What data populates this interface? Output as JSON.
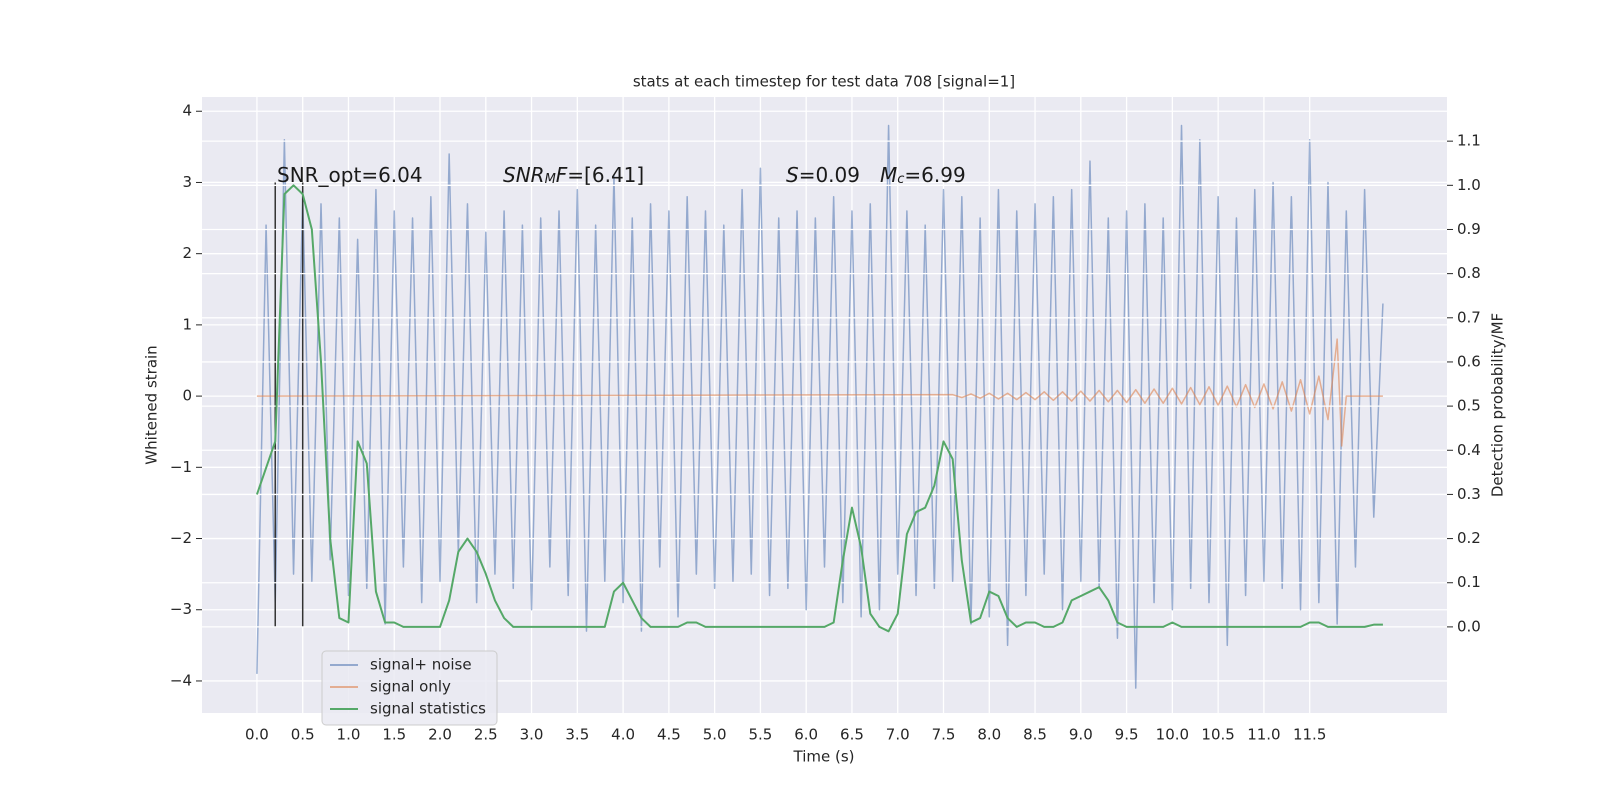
{
  "chart_data": {
    "type": "line",
    "title": "stats at each timestep for test data 708 [signal=1]",
    "x_label": "Time (s)",
    "y_label": "Whitened strain",
    "y2_label": "Detection probability/MF",
    "xlim": [
      -0.6,
      13.0
    ],
    "ylim": [
      -4.45,
      4.2
    ],
    "y2lim": [
      -0.195,
      1.2
    ],
    "grid": true,
    "xticks": [
      {
        "value": 0,
        "label": "0.0"
      },
      0.5,
      {
        "value": 1,
        "label": "1.0"
      },
      1.5,
      {
        "value": 2,
        "label": "2.0"
      },
      2.5,
      {
        "value": 3,
        "label": "3.0"
      },
      3.5,
      {
        "value": 4,
        "label": "4.0"
      },
      4.5,
      {
        "value": 5,
        "label": "5.0"
      },
      5.5,
      {
        "value": 6,
        "label": "6.0"
      },
      6.5,
      {
        "value": 7,
        "label": "7.0"
      },
      7.5,
      {
        "value": 8,
        "label": "8.0"
      },
      8.5,
      {
        "value": 9,
        "label": "9.0"
      },
      9.5,
      {
        "value": 10,
        "label": "10.0"
      },
      10.5,
      {
        "value": 11,
        "label": "11.0"
      },
      11.5
    ],
    "yticks": [
      {
        "value": -4,
        "label": "−4"
      },
      {
        "value": -3,
        "label": "−3"
      },
      {
        "value": -2,
        "label": "−2"
      },
      {
        "value": -1,
        "label": "−1"
      },
      0,
      1,
      2,
      3,
      4
    ],
    "y2ticks": [
      {
        "value": 0,
        "label": "0.0"
      },
      0.1,
      0.2,
      0.3,
      0.4,
      0.5,
      0.6,
      0.7,
      0.8,
      0.9,
      {
        "value": 1,
        "label": "1.0"
      },
      1.1
    ],
    "legend": "lower left",
    "series": [
      {
        "name": "signal+ noise",
        "color": "#4c72b0",
        "alpha": 0.55,
        "x": [
          0.0,
          0.1,
          0.2,
          0.3,
          0.4,
          0.5,
          0.6,
          0.7,
          0.8,
          0.9,
          1.0,
          1.1,
          1.2,
          1.3,
          1.4,
          1.5,
          1.6,
          1.7,
          1.8,
          1.9,
          2.0,
          2.1,
          2.2,
          2.3,
          2.4,
          2.5,
          2.6,
          2.7,
          2.8,
          2.9,
          3.0,
          3.1,
          3.2,
          3.3,
          3.4,
          3.5,
          3.6,
          3.7,
          3.8,
          3.9,
          4.0,
          4.1,
          4.2,
          4.3,
          4.4,
          4.5,
          4.6,
          4.7,
          4.8,
          4.9,
          5.0,
          5.1,
          5.2,
          5.3,
          5.4,
          5.5,
          5.6,
          5.7,
          5.8,
          5.9,
          6.0,
          6.1,
          6.2,
          6.3,
          6.4,
          6.5,
          6.6,
          6.7,
          6.8,
          6.9,
          7.0,
          7.1,
          7.2,
          7.3,
          7.4,
          7.5,
          7.6,
          7.7,
          7.8,
          7.9,
          8.0,
          8.1,
          8.2,
          8.3,
          8.4,
          8.5,
          8.6,
          8.7,
          8.8,
          8.9,
          9.0,
          9.1,
          9.2,
          9.3,
          9.4,
          9.5,
          9.6,
          9.7,
          9.8,
          9.9,
          10.0,
          10.1,
          10.2,
          10.3,
          10.4,
          10.5,
          10.6,
          10.7,
          10.8,
          10.9,
          11.0,
          11.1,
          11.2,
          11.3,
          11.4,
          11.5,
          11.6,
          11.7,
          11.8,
          11.9,
          12.0,
          12.1,
          12.2,
          12.3
        ],
        "values": [
          -3.9,
          2.4,
          -2.9,
          3.6,
          -2.5,
          2.8,
          -2.6,
          2.7,
          -2.3,
          2.5,
          -2.8,
          2.2,
          -2.7,
          2.9,
          -3.2,
          2.6,
          -2.4,
          2.5,
          -2.9,
          2.8,
          -2.6,
          3.4,
          -2.2,
          2.7,
          -2.9,
          2.3,
          -2.5,
          2.6,
          -2.7,
          2.4,
          -3.0,
          2.5,
          -2.4,
          2.6,
          -2.8,
          2.9,
          -3.3,
          2.4,
          -2.6,
          3.1,
          -2.9,
          2.5,
          -3.3,
          2.7,
          -2.4,
          2.6,
          -3.1,
          2.8,
          -2.5,
          2.6,
          -2.7,
          2.4,
          -2.6,
          2.9,
          -2.5,
          3.2,
          -2.8,
          2.5,
          -2.7,
          2.6,
          -3.0,
          2.5,
          -2.4,
          2.8,
          -2.9,
          2.6,
          -3.1,
          2.7,
          -3.0,
          3.8,
          -2.5,
          2.6,
          -2.8,
          2.4,
          -2.7,
          2.9,
          -2.6,
          2.8,
          -3.2,
          2.5,
          -3.1,
          2.9,
          -3.5,
          2.6,
          -2.8,
          2.7,
          -2.5,
          2.8,
          -3.0,
          2.9,
          -2.6,
          3.3,
          -2.7,
          2.5,
          -3.4,
          2.6,
          -4.1,
          2.7,
          -2.9,
          2.5,
          -3.0,
          3.8,
          -2.7,
          3.6,
          -2.9,
          2.8,
          -3.5,
          2.5,
          -2.8,
          2.9,
          -2.6,
          3.0,
          -2.7,
          2.8,
          -3.0,
          3.6,
          -2.9,
          3.0,
          -3.2,
          2.6,
          -2.4,
          2.9,
          -1.7,
          1.3
        ]
      },
      {
        "name": "signal only",
        "color": "#dd8452",
        "alpha": 0.6,
        "x": [
          0.0,
          7.6,
          7.7,
          7.8,
          7.9,
          8.0,
          8.1,
          8.2,
          8.3,
          8.4,
          8.5,
          8.6,
          8.7,
          8.8,
          8.9,
          9.0,
          9.1,
          9.2,
          9.3,
          9.4,
          9.5,
          9.6,
          9.7,
          9.8,
          9.9,
          10.0,
          10.1,
          10.2,
          10.3,
          10.4,
          10.5,
          10.6,
          10.7,
          10.8,
          10.9,
          11.0,
          11.1,
          11.2,
          11.3,
          11.4,
          11.5,
          11.6,
          11.7,
          11.8,
          11.85,
          11.9,
          12.3
        ],
        "values": [
          0,
          0.02,
          -0.02,
          0.03,
          -0.03,
          0.04,
          -0.04,
          0.04,
          -0.05,
          0.05,
          -0.05,
          0.06,
          -0.06,
          0.06,
          -0.07,
          0.07,
          -0.07,
          0.08,
          -0.08,
          0.08,
          -0.09,
          0.09,
          -0.1,
          0.1,
          -0.1,
          0.11,
          -0.11,
          0.12,
          -0.12,
          0.13,
          -0.13,
          0.14,
          -0.15,
          0.16,
          -0.16,
          0.17,
          -0.18,
          0.2,
          -0.21,
          0.23,
          -0.25,
          0.28,
          -0.33,
          0.8,
          -0.7,
          0,
          0
        ]
      },
      {
        "name": "signal statistics",
        "color": "#55a868",
        "alpha": 1,
        "axis": "y2",
        "x": [
          0.0,
          0.1,
          0.2,
          0.3,
          0.4,
          0.5,
          0.6,
          0.7,
          0.8,
          0.9,
          1.0,
          1.1,
          1.2,
          1.3,
          1.4,
          1.5,
          1.6,
          1.7,
          1.8,
          1.9,
          2.0,
          2.1,
          2.2,
          2.3,
          2.4,
          2.5,
          2.6,
          2.7,
          2.8,
          2.9,
          3.0,
          3.1,
          3.2,
          3.3,
          3.4,
          3.5,
          3.6,
          3.7,
          3.8,
          3.9,
          4.0,
          4.1,
          4.2,
          4.3,
          4.4,
          4.5,
          4.6,
          4.7,
          4.8,
          4.9,
          5.0,
          5.1,
          5.2,
          5.3,
          5.4,
          5.5,
          5.6,
          5.7,
          5.8,
          5.9,
          6.0,
          6.1,
          6.2,
          6.3,
          6.4,
          6.5,
          6.6,
          6.7,
          6.8,
          6.9,
          7.0,
          7.1,
          7.2,
          7.3,
          7.4,
          7.5,
          7.6,
          7.7,
          7.8,
          7.9,
          8.0,
          8.1,
          8.2,
          8.3,
          8.4,
          8.5,
          8.6,
          8.7,
          8.8,
          8.9,
          9.0,
          9.1,
          9.2,
          9.3,
          9.4,
          9.5,
          9.6,
          9.7,
          9.8,
          9.9,
          10.0,
          10.1,
          10.2,
          10.3,
          10.4,
          10.5,
          10.6,
          10.7,
          10.8,
          10.9,
          11.0,
          11.1,
          11.2,
          11.3,
          11.4,
          11.5,
          11.6,
          11.7,
          11.8,
          11.9,
          12.0,
          12.1,
          12.2,
          12.3
        ],
        "values": [
          0.3,
          0.36,
          0.42,
          0.98,
          1.0,
          0.98,
          0.9,
          0.6,
          0.2,
          0.02,
          0.01,
          0.42,
          0.37,
          0.08,
          0.01,
          0.01,
          0,
          0,
          0,
          0,
          0,
          0.06,
          0.17,
          0.2,
          0.17,
          0.12,
          0.06,
          0.02,
          0,
          0,
          0,
          0,
          0,
          0,
          0,
          0,
          0,
          0,
          0,
          0.08,
          0.1,
          0.06,
          0.02,
          0,
          0,
          0,
          0,
          0.01,
          0.01,
          0,
          0,
          0,
          0,
          0,
          0,
          0,
          0,
          0,
          0,
          0,
          0,
          0,
          0,
          0.01,
          0.15,
          0.27,
          0.18,
          0.03,
          0,
          -0.01,
          0.03,
          0.21,
          0.26,
          0.27,
          0.32,
          0.42,
          0.38,
          0.15,
          0.01,
          0.02,
          0.08,
          0.07,
          0.02,
          0,
          0.01,
          0.01,
          0,
          0,
          0.01,
          0.06,
          0.07,
          0.08,
          0.09,
          0.06,
          0.01,
          0,
          0,
          0,
          0,
          0,
          0.01,
          0,
          0,
          0,
          0,
          0,
          0,
          0,
          0,
          0,
          0,
          0,
          0,
          0,
          0,
          0.01,
          0.01,
          0,
          0,
          0,
          0,
          0,
          0.005,
          0.005
        ]
      }
    ],
    "vlines": {
      "color": "#333333",
      "lines": [
        {
          "x": 0.2,
          "ymin": -3.25,
          "ymax": 3.0
        },
        {
          "x": 0.5,
          "ymin": -3.25,
          "ymax": 3.0
        }
      ]
    },
    "annotations": [
      {
        "parts": [
          {
            "text": "SNR_opt=6.04"
          }
        ]
      },
      {
        "parts": [
          {
            "text": "SNR",
            "italic": true
          },
          {
            "text": "M",
            "italic": true,
            "sub": true
          },
          {
            "text": "F",
            "italic": true
          },
          {
            "text": "=[6.41]"
          }
        ]
      },
      {
        "parts": [
          {
            "text": "S",
            "italic": true
          },
          {
            "text": "=0.09"
          }
        ]
      },
      {
        "parts": [
          {
            "text": "M",
            "italic": true
          },
          {
            "text": "c",
            "italic": true,
            "sub": true
          },
          {
            "text": "=6.99"
          }
        ]
      }
    ]
  }
}
